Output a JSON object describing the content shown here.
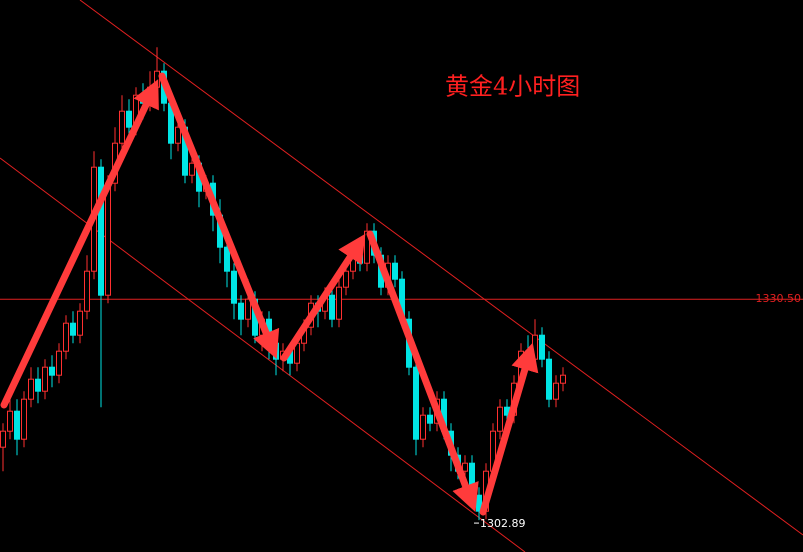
{
  "chart_data": {
    "type": "candlestick",
    "title": "黄金4小时图",
    "open": [
      1312,
      1314,
      1316.5,
      1313,
      1318,
      1320.5,
      1319,
      1322,
      1321,
      1324,
      1327.5,
      1326,
      1329,
      1334,
      1347,
      1331,
      1345,
      1350,
      1354,
      1352,
      1356,
      1355,
      1357,
      1359,
      1355,
      1350,
      1352,
      1346,
      1347.5,
      1344,
      1345,
      1341,
      1337,
      1334,
      1330,
      1328,
      1330.5,
      1326,
      1328,
      1325,
      1323,
      1324,
      1322.5,
      1325,
      1327,
      1330,
      1329,
      1331,
      1328,
      1332,
      1334,
      1336,
      1335,
      1339,
      1336,
      1332,
      1335,
      1333,
      1328,
      1322,
      1313,
      1316,
      1315,
      1318,
      1314,
      1311,
      1309,
      1310,
      1306,
      1304,
      1309,
      1314,
      1317,
      1316,
      1320,
      1324,
      1323,
      1326,
      1323,
      1318,
      1320
    ],
    "high": [
      1315,
      1318,
      1318,
      1319,
      1322,
      1322,
      1323,
      1323.5,
      1325,
      1328.5,
      1329,
      1330,
      1336,
      1349,
      1348,
      1346,
      1352,
      1356,
      1355.5,
      1357,
      1357.5,
      1359,
      1362,
      1360,
      1356,
      1353,
      1353,
      1349,
      1348.5,
      1346,
      1346,
      1343,
      1338,
      1335,
      1331,
      1333,
      1331.5,
      1329,
      1329,
      1326,
      1325,
      1325,
      1326,
      1328,
      1331,
      1331,
      1332,
      1332,
      1333,
      1335,
      1337,
      1338,
      1340,
      1340,
      1337,
      1336,
      1336,
      1334,
      1329,
      1323,
      1317,
      1317,
      1319,
      1319,
      1315,
      1312,
      1311,
      1311,
      1307,
      1310,
      1315,
      1318,
      1318,
      1321,
      1325,
      1326,
      1328,
      1327,
      1324,
      1321,
      1322
    ],
    "low": [
      1309,
      1313,
      1311,
      1312,
      1317,
      1317.5,
      1318,
      1319.5,
      1320,
      1323,
      1325,
      1325,
      1328,
      1333,
      1317,
      1330,
      1344,
      1349,
      1350.5,
      1351,
      1353,
      1354,
      1356,
      1354,
      1348,
      1349,
      1345,
      1345,
      1342,
      1343,
      1339,
      1335,
      1332,
      1328,
      1326,
      1327,
      1325,
      1324,
      1323,
      1321,
      1321.5,
      1321,
      1321.5,
      1324,
      1326,
      1327,
      1328,
      1327,
      1327,
      1331,
      1333,
      1334,
      1334,
      1335,
      1331,
      1331,
      1332,
      1327,
      1321,
      1311,
      1312,
      1314,
      1314,
      1313,
      1309,
      1308,
      1307,
      1305,
      1302.89,
      1303,
      1308,
      1313,
      1315,
      1315,
      1319,
      1322,
      1322,
      1322,
      1317,
      1317,
      1319
    ],
    "close": [
      1314,
      1316.5,
      1313,
      1318,
      1320.5,
      1319,
      1322,
      1321,
      1324,
      1327.5,
      1326,
      1329,
      1334,
      1347,
      1331,
      1345,
      1350,
      1354,
      1352,
      1356,
      1355,
      1357,
      1359,
      1355,
      1350,
      1352,
      1346,
      1347.5,
      1344,
      1345,
      1341,
      1337,
      1334,
      1330,
      1328,
      1330.5,
      1326,
      1328,
      1325,
      1323,
      1324,
      1322.5,
      1325,
      1327,
      1330,
      1329,
      1331,
      1328,
      1332,
      1334,
      1336,
      1335,
      1339,
      1336,
      1332,
      1335,
      1333,
      1328,
      1322,
      1313,
      1316,
      1315,
      1318,
      1314,
      1311,
      1309,
      1310,
      1306,
      1304,
      1309,
      1314,
      1317,
      1316,
      1320,
      1324,
      1323,
      1326,
      1323,
      1318,
      1320,
      1321
    ],
    "up_color": "#ff3030",
    "down_color": "#00e5e5",
    "ylim": [
      1298.9,
      1367.9
    ],
    "reference_line": {
      "value": 1330.5,
      "label": "1330.50"
    },
    "low_marker": {
      "index": 68,
      "value": 1302.89
    }
  }
}
